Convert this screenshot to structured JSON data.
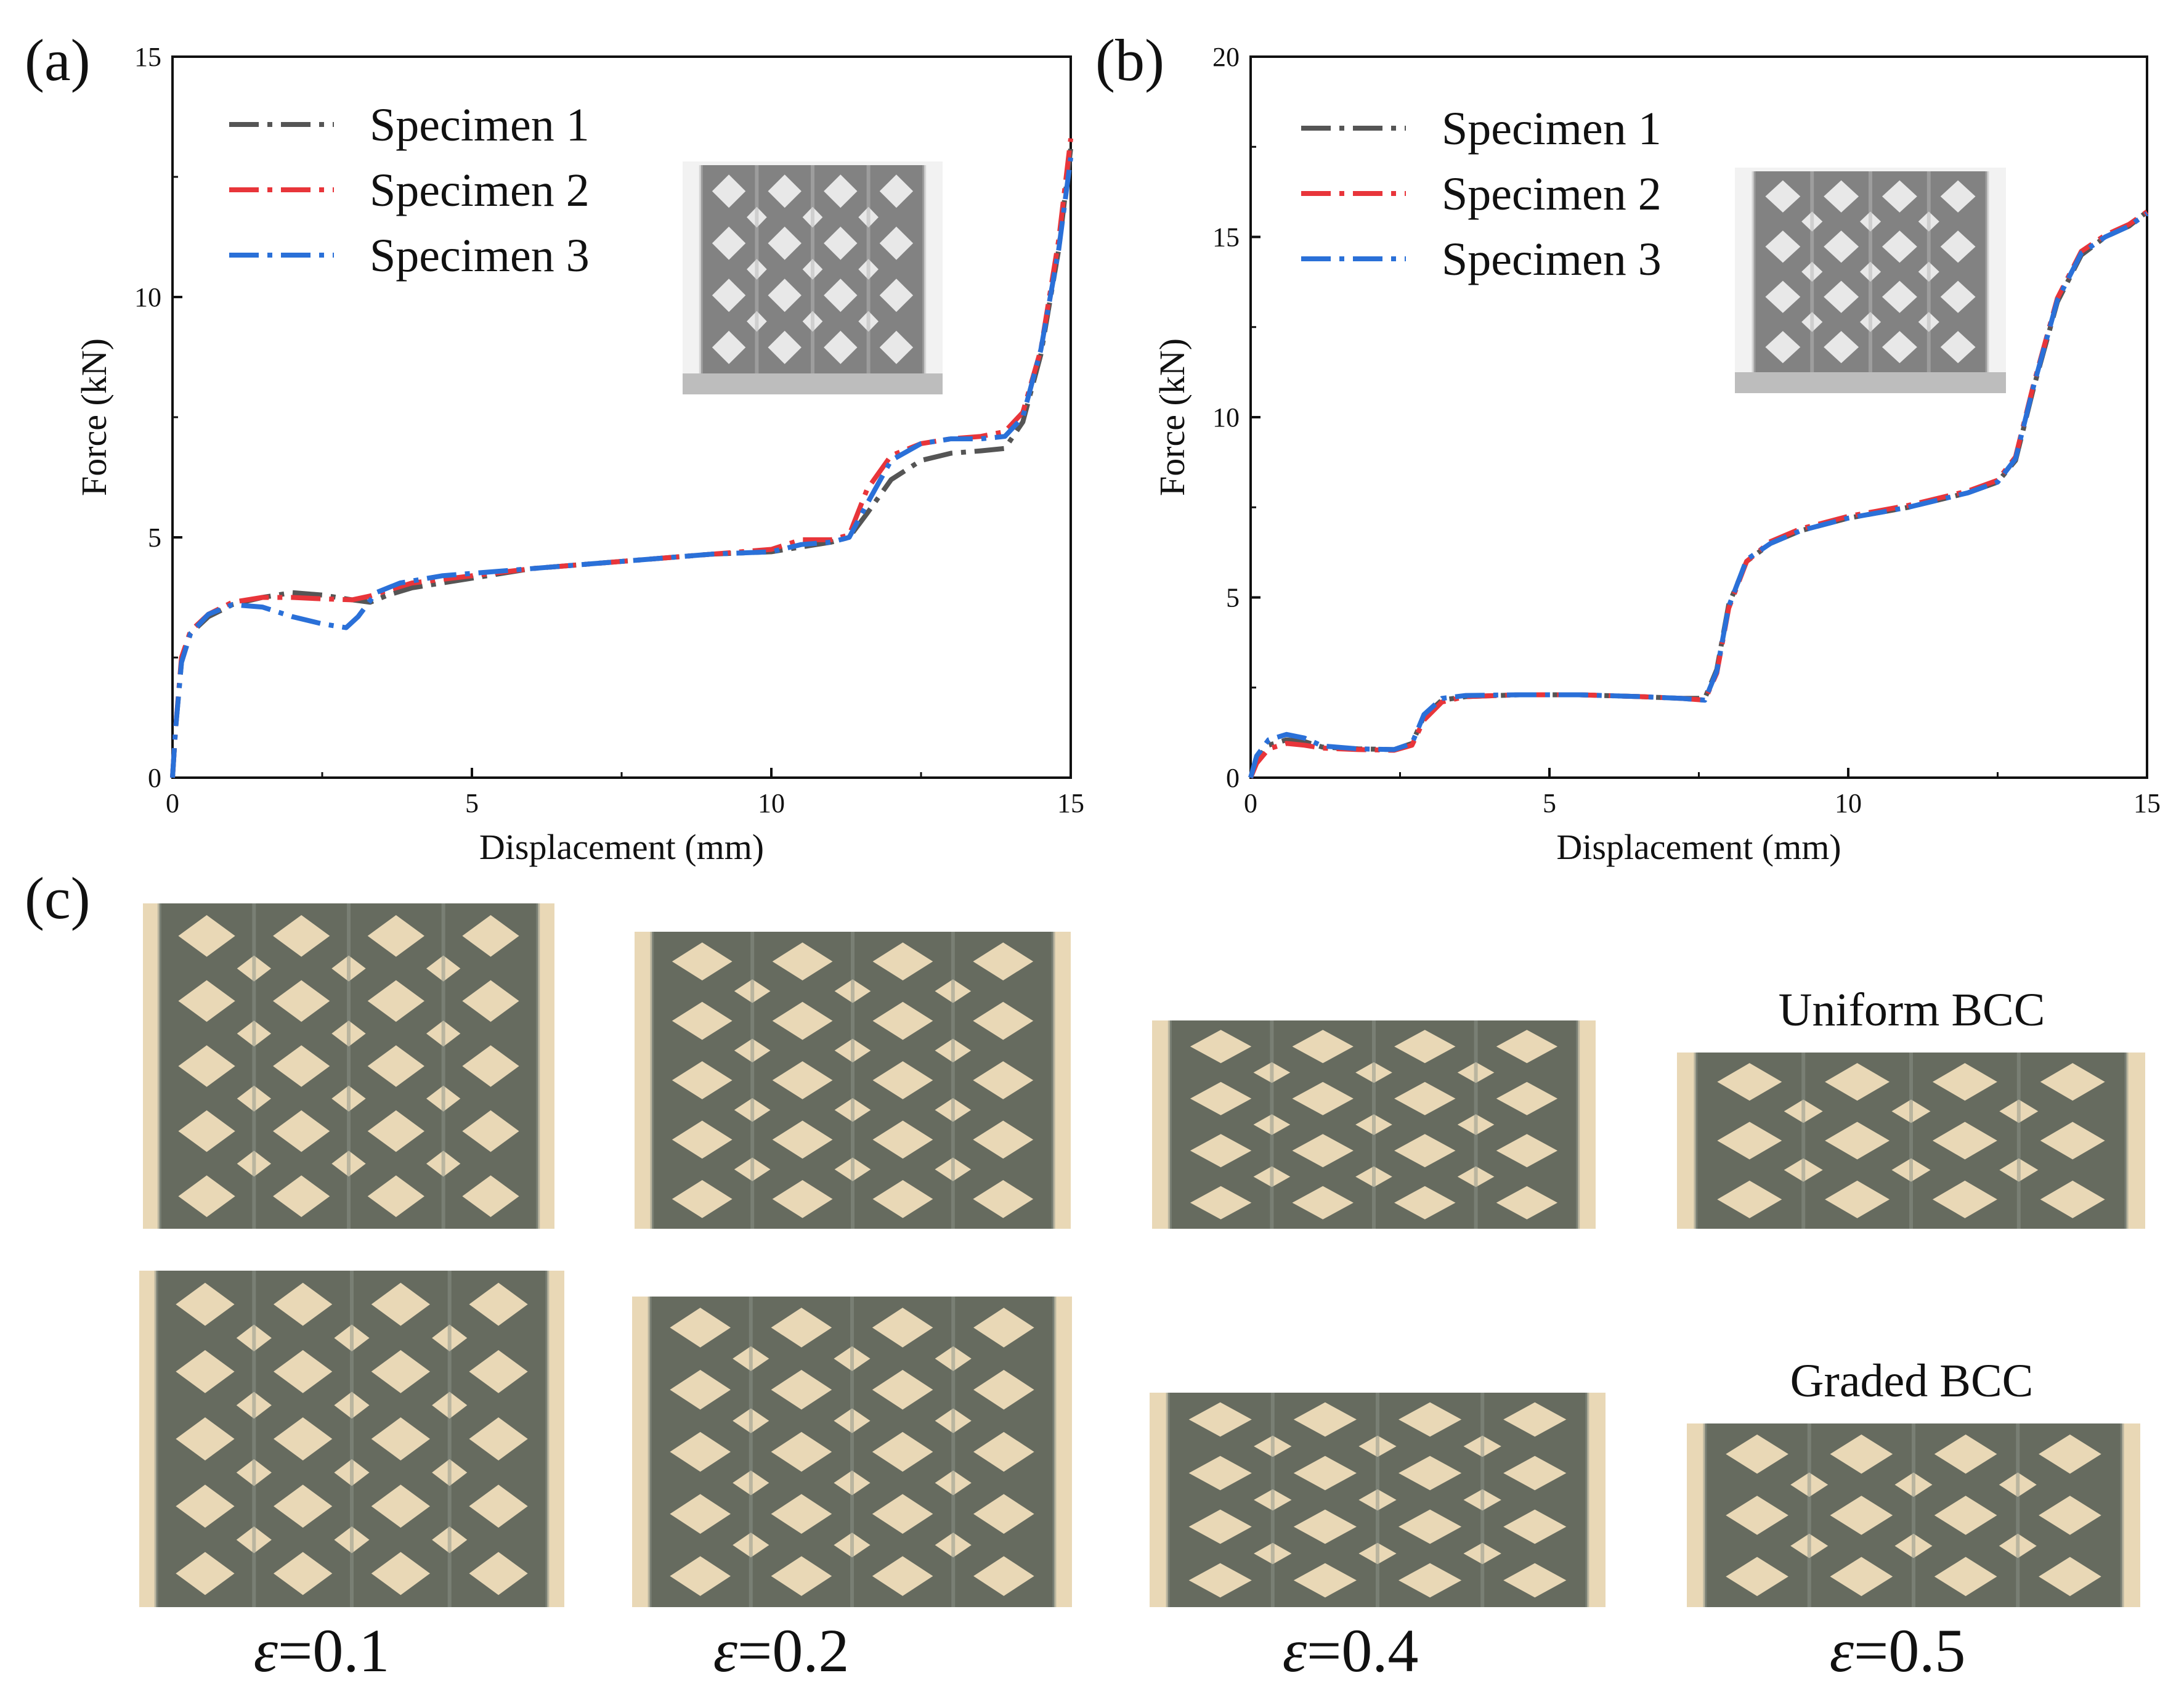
{
  "panel_letters": {
    "a": "(a)",
    "b": "(b)",
    "c": "(c)"
  },
  "chart_data": [
    {
      "type": "line",
      "panel": "(a)",
      "xlabel": "Displacement (mm)",
      "ylabel": "Force (kN)",
      "xlim": [
        0,
        15
      ],
      "ylim": [
        0,
        15
      ],
      "xticks": [
        0,
        5,
        10,
        15
      ],
      "yticks": [
        0,
        5,
        10,
        15
      ],
      "xtick_labels": [
        "0",
        "5",
        "10",
        "15"
      ],
      "ytick_labels": [
        "0",
        "5",
        "10",
        "15"
      ],
      "legend_position": "top-left",
      "series": [
        {
          "name": "Specimen 1",
          "color": "#555555",
          "x": [
            0,
            0.05,
            0.15,
            0.3,
            0.6,
            1.0,
            1.5,
            2.0,
            2.5,
            3.0,
            3.3,
            3.6,
            4.0,
            5.0,
            6.0,
            7.0,
            8.0,
            9.0,
            10.0,
            10.5,
            11.0,
            11.3,
            11.6,
            12.0,
            12.5,
            13.0,
            13.5,
            13.9,
            14.2,
            14.5,
            14.8,
            15.0
          ],
          "y": [
            0,
            1.0,
            2.4,
            3.0,
            3.35,
            3.6,
            3.75,
            3.85,
            3.8,
            3.7,
            3.65,
            3.8,
            3.95,
            4.15,
            4.35,
            4.45,
            4.55,
            4.65,
            4.7,
            4.8,
            4.9,
            5.0,
            5.5,
            6.2,
            6.6,
            6.75,
            6.8,
            6.85,
            7.4,
            8.8,
            11.0,
            13.1
          ]
        },
        {
          "name": "Specimen 2",
          "color": "#e8353a",
          "x": [
            0,
            0.05,
            0.15,
            0.3,
            0.6,
            1.0,
            1.5,
            2.0,
            2.5,
            3.0,
            3.3,
            3.6,
            4.0,
            5.0,
            6.0,
            7.0,
            8.0,
            9.0,
            10.0,
            10.5,
            11.0,
            11.3,
            11.6,
            12.0,
            12.5,
            13.0,
            13.5,
            13.9,
            14.2,
            14.5,
            14.8,
            15.0
          ],
          "y": [
            0,
            1.0,
            2.5,
            3.05,
            3.4,
            3.65,
            3.75,
            3.75,
            3.72,
            3.7,
            3.78,
            3.9,
            4.05,
            4.2,
            4.35,
            4.45,
            4.55,
            4.65,
            4.75,
            4.95,
            4.95,
            5.05,
            6.0,
            6.7,
            6.95,
            7.05,
            7.1,
            7.2,
            7.6,
            8.9,
            11.2,
            13.3
          ]
        },
        {
          "name": "Specimen 3",
          "color": "#2a70d8",
          "x": [
            0,
            0.05,
            0.15,
            0.3,
            0.6,
            1.0,
            1.5,
            2.0,
            2.5,
            2.9,
            3.1,
            3.4,
            3.8,
            4.5,
            5.0,
            6.0,
            7.0,
            8.0,
            9.0,
            10.0,
            10.5,
            11.0,
            11.3,
            11.6,
            12.0,
            12.5,
            13.0,
            13.5,
            13.9,
            14.2,
            14.5,
            14.8,
            15.0
          ],
          "y": [
            0,
            1.0,
            2.4,
            3.0,
            3.4,
            3.6,
            3.55,
            3.35,
            3.2,
            3.12,
            3.35,
            3.85,
            4.05,
            4.2,
            4.25,
            4.35,
            4.45,
            4.55,
            4.65,
            4.7,
            4.85,
            4.9,
            5.0,
            5.7,
            6.6,
            6.95,
            7.05,
            7.05,
            7.1,
            7.5,
            8.9,
            11.0,
            12.9
          ]
        }
      ]
    },
    {
      "type": "line",
      "panel": "(b)",
      "xlabel": "Displacement (mm)",
      "ylabel": "Force (kN)",
      "xlim": [
        0,
        15
      ],
      "ylim": [
        0,
        20
      ],
      "xticks": [
        0,
        5,
        10,
        15
      ],
      "yticks": [
        0,
        5,
        10,
        15,
        20
      ],
      "xtick_labels": [
        "0",
        "5",
        "10",
        "15"
      ],
      "ytick_labels": [
        "0",
        "5",
        "10",
        "15",
        "20"
      ],
      "legend_position": "top-left",
      "series": [
        {
          "name": "Specimen 1",
          "color": "#555555",
          "x": [
            0,
            0.1,
            0.3,
            0.6,
            0.9,
            1.2,
            1.8,
            2.4,
            2.7,
            2.9,
            3.2,
            3.6,
            4.5,
            5.5,
            6.5,
            7.2,
            7.6,
            7.8,
            8.0,
            8.3,
            8.7,
            9.2,
            10.0,
            11.0,
            12.0,
            12.5,
            12.8,
            13.1,
            13.5,
            13.9,
            14.3,
            14.7,
            15.0
          ],
          "y": [
            0,
            0.5,
            0.9,
            1.05,
            1.0,
            0.85,
            0.8,
            0.78,
            0.95,
            1.7,
            2.15,
            2.25,
            2.3,
            2.3,
            2.25,
            2.2,
            2.2,
            3.0,
            4.8,
            6.0,
            6.5,
            6.85,
            7.2,
            7.5,
            7.9,
            8.2,
            8.8,
            10.8,
            13.2,
            14.5,
            15.0,
            15.3,
            15.7
          ]
        },
        {
          "name": "Specimen 2",
          "color": "#e8353a",
          "x": [
            0,
            0.1,
            0.3,
            0.6,
            0.9,
            1.2,
            1.8,
            2.4,
            2.7,
            2.9,
            3.2,
            3.6,
            4.5,
            5.5,
            6.5,
            7.2,
            7.6,
            7.8,
            8.0,
            8.3,
            8.7,
            9.2,
            10.0,
            11.0,
            12.0,
            12.5,
            12.8,
            13.1,
            13.5,
            13.9,
            14.3,
            14.7,
            15.0
          ],
          "y": [
            0,
            0.4,
            0.8,
            0.95,
            0.9,
            0.82,
            0.78,
            0.76,
            0.9,
            1.6,
            2.1,
            2.25,
            2.3,
            2.3,
            2.25,
            2.2,
            2.15,
            2.9,
            4.7,
            6.0,
            6.55,
            6.9,
            7.25,
            7.55,
            7.95,
            8.25,
            8.9,
            10.9,
            13.3,
            14.6,
            15.05,
            15.35,
            15.7
          ]
        },
        {
          "name": "Specimen 3",
          "color": "#2a70d8",
          "x": [
            0,
            0.1,
            0.3,
            0.6,
            0.9,
            1.2,
            1.8,
            2.4,
            2.7,
            2.9,
            3.2,
            3.6,
            4.5,
            5.5,
            6.5,
            7.2,
            7.6,
            7.8,
            8.0,
            8.3,
            8.7,
            9.2,
            10.0,
            11.0,
            12.0,
            12.5,
            12.8,
            13.1,
            13.5,
            13.9,
            14.3,
            14.7,
            15.0
          ],
          "y": [
            0,
            0.6,
            1.05,
            1.2,
            1.1,
            0.88,
            0.8,
            0.78,
            0.95,
            1.75,
            2.2,
            2.28,
            2.3,
            2.3,
            2.25,
            2.2,
            2.15,
            2.95,
            4.75,
            6.05,
            6.5,
            6.85,
            7.2,
            7.5,
            7.9,
            8.2,
            8.85,
            10.85,
            13.25,
            14.55,
            15.0,
            15.3,
            15.65
          ]
        }
      ]
    }
  ],
  "panel_c": {
    "row_labels": [
      "Uniform BCC",
      "Graded BCC"
    ],
    "strain_labels": [
      "=0.1",
      "=0.2",
      "=0.4",
      "=0.5"
    ],
    "strain_symbol": "ε",
    "specimen_colors": {
      "background": "#e9d8b6",
      "strut": "#5a6258",
      "strut_light": "#8c948a"
    }
  }
}
